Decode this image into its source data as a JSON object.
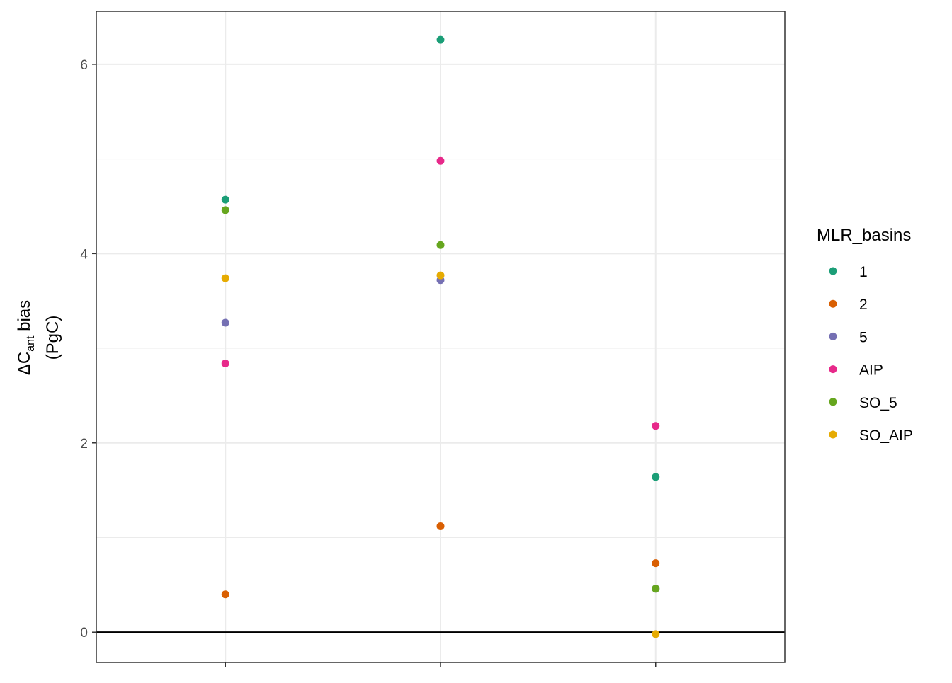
{
  "chart_data": {
    "type": "scatter",
    "categories": [
      null,
      null,
      null
    ],
    "series": [
      {
        "name": "1",
        "color": "#1b9e77",
        "values": [
          4.57,
          6.26,
          1.64
        ]
      },
      {
        "name": "2",
        "color": "#d95f02",
        "values": [
          0.4,
          1.12,
          0.73
        ]
      },
      {
        "name": "5",
        "color": "#7570b3",
        "values": [
          3.27,
          3.72,
          0.46
        ]
      },
      {
        "name": "AIP",
        "color": "#e7298a",
        "values": [
          2.84,
          4.98,
          2.18
        ]
      },
      {
        "name": "SO_5",
        "color": "#66a61e",
        "values": [
          4.46,
          4.09,
          0.46
        ]
      },
      {
        "name": "SO_AIP",
        "color": "#e6ab02",
        "values": [
          3.74,
          3.77,
          -0.02
        ]
      }
    ],
    "ylim": [
      -0.32,
      6.56
    ],
    "yticks": [
      0,
      2,
      4,
      6
    ],
    "yminor": [
      1,
      3,
      5
    ],
    "hline": 0,
    "grid": true,
    "legend_title": "MLR_basins",
    "legend_position": "right",
    "ylabel": {
      "delta": "ΔC",
      "sub": "ant",
      "rest": " bias",
      "line2": "(PgC)"
    }
  }
}
